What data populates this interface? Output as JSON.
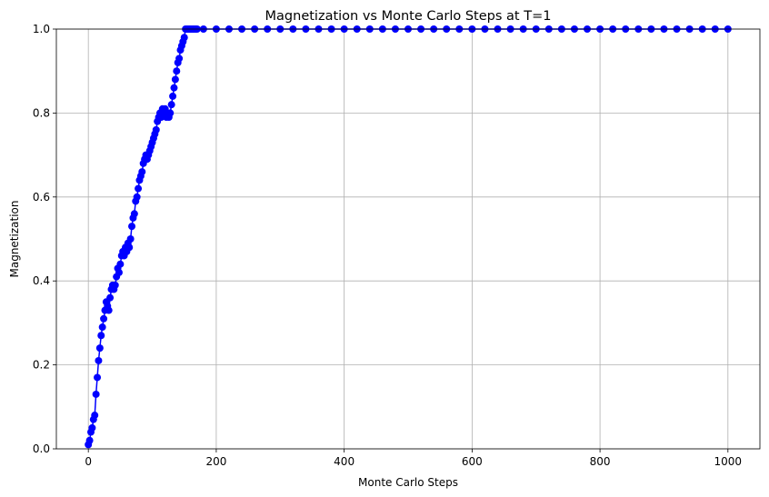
{
  "chart_data": {
    "type": "line",
    "title": "Magnetization vs Monte Carlo Steps at T=1",
    "xlabel": "Monte Carlo Steps",
    "ylabel": "Magnetization",
    "xlim": [
      -50,
      1050
    ],
    "ylim": [
      0,
      1.0
    ],
    "x_ticks": [
      0,
      200,
      400,
      600,
      800,
      1000
    ],
    "y_ticks": [
      0.0,
      0.2,
      0.4,
      0.6,
      0.8,
      1.0
    ],
    "x_tick_labels": [
      "0",
      "200",
      "400",
      "600",
      "800",
      "1000"
    ],
    "y_tick_labels": [
      "0.0",
      "0.2",
      "0.4",
      "0.6",
      "0.8",
      "1.0"
    ],
    "grid": true,
    "marker": "circle",
    "color": "#0000ff",
    "series": [
      {
        "x": [
          0,
          2,
          4,
          6,
          8,
          10,
          12,
          14,
          16,
          18,
          20,
          22,
          24,
          26,
          28,
          30,
          32,
          34,
          36,
          38,
          40,
          42,
          44,
          46,
          48,
          50,
          52,
          54,
          56,
          58,
          60,
          62,
          64,
          66,
          68,
          70,
          72,
          74,
          76,
          78,
          80,
          82,
          84,
          86,
          88,
          90,
          92,
          94,
          96,
          98,
          100,
          102,
          104,
          106,
          108,
          110,
          112,
          114,
          116,
          118,
          120,
          122,
          124,
          126,
          128,
          130,
          132,
          134,
          136,
          138,
          140,
          142,
          144,
          146,
          148,
          150,
          152,
          154,
          156,
          158,
          160,
          162,
          164,
          166,
          168,
          170,
          180,
          200,
          220,
          240,
          260,
          280,
          300,
          320,
          340,
          360,
          380,
          400,
          420,
          440,
          460,
          480,
          500,
          520,
          540,
          560,
          580,
          600,
          620,
          640,
          660,
          680,
          700,
          720,
          740,
          760,
          780,
          800,
          820,
          840,
          860,
          880,
          900,
          920,
          940,
          960,
          980,
          1000
        ],
        "y": [
          0.01,
          0.02,
          0.04,
          0.05,
          0.07,
          0.08,
          0.13,
          0.17,
          0.21,
          0.24,
          0.27,
          0.29,
          0.31,
          0.33,
          0.35,
          0.34,
          0.33,
          0.36,
          0.38,
          0.39,
          0.38,
          0.39,
          0.41,
          0.43,
          0.42,
          0.44,
          0.46,
          0.47,
          0.46,
          0.48,
          0.47,
          0.49,
          0.48,
          0.5,
          0.53,
          0.55,
          0.56,
          0.59,
          0.6,
          0.62,
          0.64,
          0.65,
          0.66,
          0.68,
          0.69,
          0.7,
          0.69,
          0.7,
          0.71,
          0.72,
          0.73,
          0.74,
          0.75,
          0.76,
          0.78,
          0.79,
          0.8,
          0.79,
          0.81,
          0.8,
          0.81,
          0.79,
          0.8,
          0.79,
          0.8,
          0.82,
          0.84,
          0.86,
          0.88,
          0.9,
          0.92,
          0.93,
          0.95,
          0.96,
          0.97,
          0.98,
          1.0,
          1.0,
          1.0,
          1.0,
          1.0,
          1.0,
          1.0,
          1.0,
          1.0,
          1.0,
          1.0,
          1.0,
          1.0,
          1.0,
          1.0,
          1.0,
          1.0,
          1.0,
          1.0,
          1.0,
          1.0,
          1.0,
          1.0,
          1.0,
          1.0,
          1.0,
          1.0,
          1.0,
          1.0,
          1.0,
          1.0,
          1.0,
          1.0,
          1.0,
          1.0,
          1.0,
          1.0,
          1.0,
          1.0,
          1.0,
          1.0,
          1.0,
          1.0,
          1.0,
          1.0,
          1.0,
          1.0,
          1.0,
          1.0,
          1.0,
          1.0,
          1.0
        ]
      }
    ]
  }
}
